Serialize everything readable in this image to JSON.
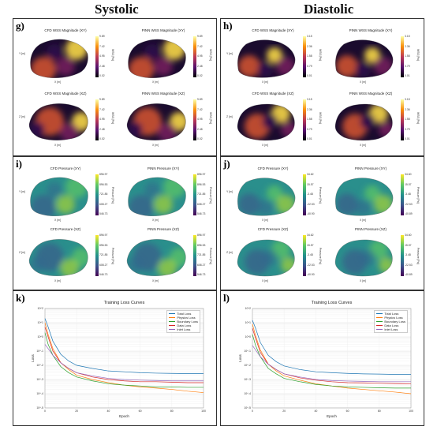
{
  "columns": {
    "left": "Systolic",
    "right": "Diastolic"
  },
  "panels": {
    "g": {
      "label": "g)",
      "subplots": [
        {
          "title": "CFD WSS Magnitude (XY)",
          "cbar": [
            "9.89",
            "7.42",
            "4.95",
            "2.48",
            "0.02"
          ],
          "cbar_unit": "WSS [Pa]",
          "ylab": "Y [m]",
          "xlab": "X [m]",
          "scheme": "inferno",
          "variant": 0
        },
        {
          "title": "PINN WSS Magnitude (XY)",
          "cbar": [
            "9.89",
            "7.42",
            "4.95",
            "2.48",
            "0.02"
          ],
          "cbar_unit": "WSS [Pa]",
          "ylab": "",
          "xlab": "X [m]",
          "scheme": "inferno",
          "variant": 0
        },
        {
          "title": "CFD WSS Magnitude (XZ)",
          "cbar": [
            "9.89",
            "7.42",
            "4.95",
            "2.48",
            "0.02"
          ],
          "cbar_unit": "WSS [Pa]",
          "ylab": "Z [m]",
          "xlab": "X [m]",
          "scheme": "inferno",
          "variant": 1
        },
        {
          "title": "PINN WSS Magnitude (XZ)",
          "cbar": [
            "9.89",
            "7.42",
            "4.95",
            "2.48",
            "0.02"
          ],
          "cbar_unit": "WSS [Pa]",
          "ylab": "",
          "xlab": "X [m]",
          "scheme": "inferno",
          "variant": 1
        }
      ]
    },
    "h": {
      "label": "h)",
      "subplots": [
        {
          "title": "CFD WSS Magnitude (XY)",
          "cbar": [
            "3.15",
            "2.36",
            "1.58",
            "0.79",
            "0.01"
          ],
          "cbar_unit": "WSS [Pa]",
          "ylab": "Y [m]",
          "xlab": "X [m]",
          "scheme": "inferno",
          "variant": 2
        },
        {
          "title": "PINN WSS Magnitude (XY)",
          "cbar": [
            "3.15",
            "2.36",
            "1.58",
            "0.79",
            "0.01"
          ],
          "cbar_unit": "WSS [Pa]",
          "ylab": "",
          "xlab": "X [m]",
          "scheme": "inferno",
          "variant": 2
        },
        {
          "title": "CFD WSS Magnitude (XZ)",
          "cbar": [
            "3.15",
            "2.36",
            "1.58",
            "0.79",
            "0.01"
          ],
          "cbar_unit": "WSS [Pa]",
          "ylab": "Z [m]",
          "xlab": "X [m]",
          "scheme": "inferno",
          "variant": 3
        },
        {
          "title": "PINN WSS Magnitude (XZ)",
          "cbar": [
            "3.15",
            "2.36",
            "1.58",
            "0.79",
            "0.01"
          ],
          "cbar_unit": "WSS [Pa]",
          "ylab": "",
          "xlab": "X [m]",
          "scheme": "inferno",
          "variant": 3
        }
      ]
    },
    "i": {
      "label": "i)",
      "subplots": [
        {
          "title": "CFD Pressure (XY)",
          "cbar": [
            "896.97",
            "896.53",
            "721.85",
            "608.27",
            "546.73"
          ],
          "cbar_unit": "Pressure [Pa]",
          "ylab": "Y [m]",
          "xlab": "X [m]",
          "scheme": "viridis",
          "variant": 0
        },
        {
          "title": "PINN Pressure (XY)",
          "cbar": [
            "896.97",
            "896.53",
            "721.85",
            "608.27",
            "546.73"
          ],
          "cbar_unit": "Pressure [Pa]",
          "ylab": "",
          "xlab": "X [m]",
          "scheme": "viridis",
          "variant": 0
        },
        {
          "title": "CFD Pressure (XZ)",
          "cbar": [
            "896.97",
            "896.53",
            "721.85",
            "608.27",
            "546.73"
          ],
          "cbar_unit": "Pressure [Pa]",
          "ylab": "Z [m]",
          "xlab": "X [m]",
          "scheme": "viridis",
          "variant": 1
        },
        {
          "title": "PINN Pressure (XZ)",
          "cbar": [
            "896.97",
            "896.53",
            "721.85",
            "608.27",
            "546.73"
          ],
          "cbar_unit": "Pressure [Pa]",
          "ylab": "",
          "xlab": "X [m]",
          "scheme": "viridis",
          "variant": 1
        }
      ]
    },
    "j": {
      "label": "j)",
      "subplots": [
        {
          "title": "CFD Pressure (XY)",
          "cbar": [
            "34.62",
            "15.57",
            "-3.48",
            "-22.53",
            "-40.90"
          ],
          "cbar_unit": "Pressure [Pa]",
          "ylab": "Y [m]",
          "xlab": "X [m]",
          "scheme": "viridis",
          "variant": 2
        },
        {
          "title": "PINN Pressure (XY)",
          "cbar": [
            "34.60",
            "15.57",
            "-3.48",
            "-22.53",
            "-40.89"
          ],
          "cbar_unit": "Pressure [Pa]",
          "ylab": "",
          "xlab": "X [m]",
          "scheme": "viridis",
          "variant": 2
        },
        {
          "title": "CFD Pressure (XZ)",
          "cbar": [
            "34.62",
            "15.57",
            "-3.48",
            "-22.53",
            "-40.90"
          ],
          "cbar_unit": "Pressure [Pa]",
          "ylab": "Z [m]",
          "xlab": "X [m]",
          "scheme": "viridis",
          "variant": 3
        },
        {
          "title": "PINN Pressure (XZ)",
          "cbar": [
            "34.60",
            "15.57",
            "-3.48",
            "-22.53",
            "-40.89"
          ],
          "cbar_unit": "Pressure [Pa]",
          "ylab": "",
          "xlab": "X [m]",
          "scheme": "viridis",
          "variant": 3
        }
      ]
    }
  },
  "chart_data": [
    {
      "type": "line",
      "panel_label": "k)",
      "title": "Training Loss Curves",
      "xlabel": "Epoch",
      "ylabel": "Loss",
      "y_scale": "log",
      "xlim": [
        0,
        100
      ],
      "ylim": [
        1e-05,
        100
      ],
      "grid": true,
      "legend_position": "top-right",
      "x": [
        0,
        2,
        5,
        10,
        15,
        20,
        30,
        40,
        50,
        60,
        70,
        80,
        90,
        100
      ],
      "series": [
        {
          "name": "Total Loss",
          "color": "#1f77b4",
          "values": [
            20,
            5,
            0.5,
            0.06,
            0.02,
            0.01,
            0.006,
            0.004,
            0.0035,
            0.003,
            0.0028,
            0.0027,
            0.0026,
            0.0026
          ]
        },
        {
          "name": "Physics Loss",
          "color": "#ff7f0e",
          "values": [
            10,
            1.5,
            0.15,
            0.015,
            0.005,
            0.002,
            0.001,
            0.0006,
            0.0004,
            0.0003,
            0.00025,
            0.0002,
            0.00015,
            0.00012
          ]
        },
        {
          "name": "Boundary Loss",
          "color": "#2ca02c",
          "values": [
            2,
            0.3,
            0.05,
            0.008,
            0.003,
            0.0015,
            0.0008,
            0.0005,
            0.0004,
            0.00035,
            0.0003,
            0.0003,
            0.00028,
            0.00028
          ]
        },
        {
          "name": "Data Loss",
          "color": "#d62728",
          "values": [
            5,
            1,
            0.1,
            0.015,
            0.006,
            0.003,
            0.0015,
            0.001,
            0.0008,
            0.0007,
            0.0007,
            0.00065,
            0.0006,
            0.0006
          ]
        },
        {
          "name": "Inlet Loss",
          "color": "#9467bd",
          "values": [
            0.3,
            0.15,
            0.05,
            0.015,
            0.006,
            0.003,
            0.0018,
            0.0012,
            0.001,
            0.0009,
            0.00085,
            0.0008,
            0.0008,
            0.0008
          ]
        }
      ]
    },
    {
      "type": "line",
      "panel_label": "l)",
      "title": "Training Loss Curves",
      "xlabel": "Epoch",
      "ylabel": "Loss",
      "y_scale": "log",
      "xlim": [
        0,
        100
      ],
      "ylim": [
        1e-05,
        100
      ],
      "grid": true,
      "legend_position": "top-right",
      "x": [
        0,
        2,
        5,
        10,
        15,
        20,
        30,
        40,
        50,
        60,
        70,
        80,
        90,
        100
      ],
      "series": [
        {
          "name": "Total Loss",
          "color": "#1f77b4",
          "values": [
            15,
            4,
            0.4,
            0.05,
            0.018,
            0.009,
            0.005,
            0.0035,
            0.003,
            0.0027,
            0.0025,
            0.0024,
            0.0023,
            0.0023
          ]
        },
        {
          "name": "Physics Loss",
          "color": "#ff7f0e",
          "values": [
            8,
            1.2,
            0.12,
            0.012,
            0.004,
            0.0018,
            0.0009,
            0.0005,
            0.00035,
            0.00025,
            0.0002,
            0.00016,
            0.00013,
            0.0001
          ]
        },
        {
          "name": "Boundary Loss",
          "color": "#2ca02c",
          "values": [
            1.5,
            0.25,
            0.04,
            0.006,
            0.0025,
            0.0012,
            0.0007,
            0.00045,
            0.00035,
            0.0003,
            0.00028,
            0.00026,
            0.00025,
            0.00025
          ]
        },
        {
          "name": "Data Loss",
          "color": "#d62728",
          "values": [
            4,
            0.8,
            0.08,
            0.012,
            0.005,
            0.0025,
            0.0013,
            0.0009,
            0.0007,
            0.0006,
            0.00058,
            0.00055,
            0.00052,
            0.0005
          ]
        },
        {
          "name": "Inlet Loss",
          "color": "#9467bd",
          "values": [
            0.25,
            0.12,
            0.04,
            0.012,
            0.005,
            0.0025,
            0.0015,
            0.001,
            0.00085,
            0.00078,
            0.00074,
            0.0007,
            0.0007,
            0.0007
          ]
        }
      ]
    }
  ]
}
